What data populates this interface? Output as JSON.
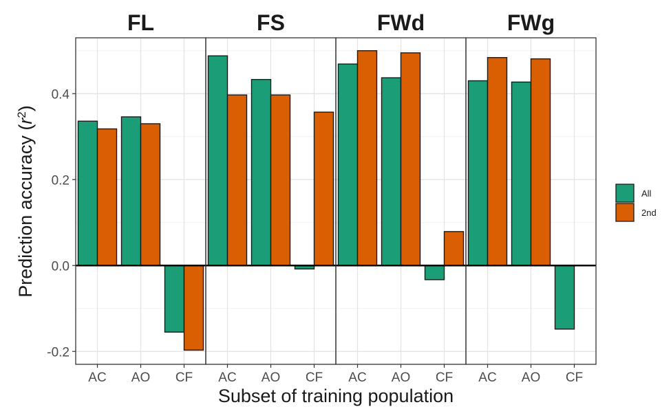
{
  "chart_data": {
    "type": "bar",
    "facets": [
      "FL",
      "FS",
      "FWd",
      "FWg"
    ],
    "categories": [
      "AC",
      "AO",
      "CF"
    ],
    "series": [
      {
        "name": "All",
        "color": "#1b9e77",
        "values": {
          "FL": [
            0.336,
            0.346,
            -0.155
          ],
          "FS": [
            0.488,
            0.433,
            -0.008
          ],
          "FWd": [
            0.469,
            0.437,
            -0.033
          ],
          "FWg": [
            0.43,
            0.427,
            -0.148
          ]
        }
      },
      {
        "name": "2nd",
        "color": "#d95f02",
        "values": {
          "FL": [
            0.318,
            0.33,
            -0.197
          ],
          "FS": [
            0.397,
            0.397,
            0.357
          ],
          "FWd": [
            0.5,
            0.495,
            0.079
          ],
          "FWg": [
            0.484,
            0.481,
            null
          ]
        }
      }
    ],
    "xlabel": "Subset of training population",
    "ylabel_main": "Prediction accuracy (",
    "ylabel_var": "r",
    "ylabel_sup": "2",
    "ylabel_close": ")",
    "ylim": [
      -0.23,
      0.53
    ],
    "yticks": [
      -0.2,
      0.0,
      0.2,
      0.4
    ],
    "ytick_labels": [
      "-0.2",
      "0.0",
      "0.2",
      "0.4"
    ],
    "grid": true,
    "legend_position": "right"
  }
}
